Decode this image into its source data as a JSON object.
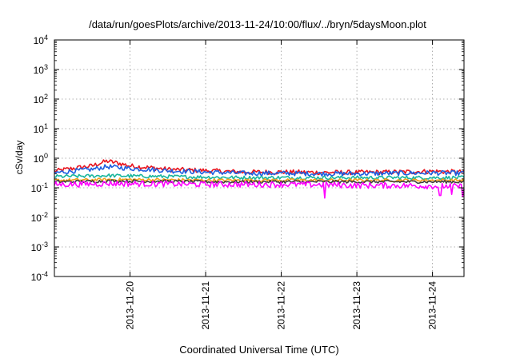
{
  "chart_data": {
    "type": "line",
    "title": "/data/run/goesPlots/archive/2013-11-24/10:00/flux/../bryn/5daysMoon.plot",
    "xlabel": "Coordinated Universal Time (UTC)",
    "ylabel": "cSv/day",
    "y_scale": "log",
    "ylim": [
      0.0001,
      10000
    ],
    "y_tick_values": [
      0.0001,
      0.001,
      0.01,
      0.1,
      1,
      10,
      100,
      1000,
      10000
    ],
    "y_tick_labels": [
      {
        "base": "10",
        "exp": "-4"
      },
      {
        "base": "10",
        "exp": "-3"
      },
      {
        "base": "10",
        "exp": "-2"
      },
      {
        "base": "10",
        "exp": "-1"
      },
      {
        "base": "10",
        "exp": "0"
      },
      {
        "base": "10",
        "exp": "1"
      },
      {
        "base": "10",
        "exp": "2"
      },
      {
        "base": "10",
        "exp": "3"
      },
      {
        "base": "10",
        "exp": "4"
      }
    ],
    "x_range": [
      "2013-11-19 00:00",
      "2013-11-24 10:00"
    ],
    "x_ticks": [
      "2013-11-20",
      "2013-11-21",
      "2013-11-22",
      "2013-11-23",
      "2013-11-24"
    ],
    "grid": true,
    "legend": "none",
    "x_days": [
      0,
      0.5,
      0.7,
      1.0,
      1.5,
      2.0,
      2.5,
      3.0,
      3.5,
      4.0,
      4.5,
      5.0,
      5.42
    ],
    "series": [
      {
        "color": "#e8141e",
        "noise": 0.16,
        "values": [
          0.36,
          0.55,
          0.8,
          0.55,
          0.42,
          0.38,
          0.34,
          0.34,
          0.33,
          0.33,
          0.34,
          0.36,
          0.34
        ]
      },
      {
        "color": "#1f5fe0",
        "noise": 0.16,
        "values": [
          0.32,
          0.42,
          0.52,
          0.45,
          0.38,
          0.34,
          0.31,
          0.31,
          0.3,
          0.3,
          0.31,
          0.32,
          0.31
        ]
      },
      {
        "color": "#18b59c",
        "noise": 0.12,
        "values": [
          0.24,
          0.25,
          0.26,
          0.25,
          0.24,
          0.23,
          0.22,
          0.22,
          0.22,
          0.22,
          0.22,
          0.22,
          0.22
        ]
      },
      {
        "color": "#f2a11a",
        "noise": 0.1,
        "values": [
          0.18,
          0.185,
          0.19,
          0.19,
          0.185,
          0.18,
          0.18,
          0.18,
          0.18,
          0.18,
          0.18,
          0.18,
          0.18
        ]
      },
      {
        "color": "#404040",
        "noise": 0.1,
        "values": [
          0.16,
          0.165,
          0.17,
          0.168,
          0.165,
          0.16,
          0.16,
          0.16,
          0.16,
          0.16,
          0.16,
          0.16,
          0.16
        ]
      },
      {
        "color": "#ff00ff",
        "noise": 0.2,
        "values": [
          0.13,
          0.135,
          0.14,
          0.138,
          0.135,
          0.13,
          0.13,
          0.13,
          0.128,
          0.12,
          0.12,
          0.115,
          0.11
        ]
      }
    ],
    "dips": [
      {
        "series": 5,
        "x": 3.57,
        "value": 0.045
      },
      {
        "series": 5,
        "x": 5.1,
        "value": 0.055
      },
      {
        "series": 5,
        "x": 5.25,
        "value": 0.06
      },
      {
        "series": 5,
        "x": 5.4,
        "value": 0.05
      }
    ]
  }
}
